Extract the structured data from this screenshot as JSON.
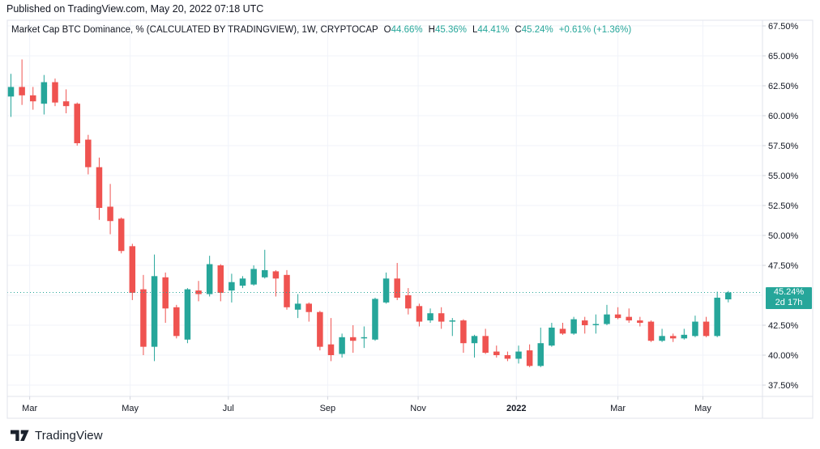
{
  "published_bar": {
    "text": "Published on TradingView.com, May 20, 2022 07:18 UTC"
  },
  "legend": {
    "title": "Market Cap BTC Dominance, % (CALCULATED BY TRADINGVIEW), 1W, CRYPTOCAP",
    "ohlc": [
      {
        "label": "O",
        "value": "44.66%"
      },
      {
        "label": "H",
        "value": "45.36%"
      },
      {
        "label": "L",
        "value": "44.41%"
      },
      {
        "label": "C",
        "value": "45.24%"
      }
    ],
    "change": "+0.61% (+1.36%)"
  },
  "footer": {
    "logo_text": "TradingView"
  },
  "colors": {
    "up": "#26a69a",
    "down": "#ef5350",
    "grid": "#f0f3fa",
    "border": "#e0e3eb",
    "axis_text": "#131722",
    "tick": "#d1d4dc",
    "price_line": "#26a69a",
    "badge_bg": "#26a69a",
    "badge_text": "#ffffff"
  },
  "chart_data": {
    "type": "candlestick",
    "title": "Market Cap BTC Dominance, %",
    "symbol": "CRYPTOCAP",
    "interval": "1W",
    "legend_position": "top-left",
    "grid": true,
    "ylim": [
      36.5,
      68.0
    ],
    "y_ticks": [
      {
        "label": "67.50%",
        "value": 67.5
      },
      {
        "label": "65.00%",
        "value": 65.0
      },
      {
        "label": "62.50%",
        "value": 62.5
      },
      {
        "label": "60.00%",
        "value": 60.0
      },
      {
        "label": "57.50%",
        "value": 57.5
      },
      {
        "label": "55.00%",
        "value": 55.0
      },
      {
        "label": "52.50%",
        "value": 52.5
      },
      {
        "label": "50.00%",
        "value": 50.0
      },
      {
        "label": "47.50%",
        "value": 47.5
      },
      {
        "label": "42.50%",
        "value": 42.5
      },
      {
        "label": "40.00%",
        "value": 40.0
      },
      {
        "label": "37.50%",
        "value": 37.5
      }
    ],
    "y_grid_values": [
      67.5,
      65.0,
      62.5,
      60.0,
      57.5,
      55.0,
      52.5,
      50.0,
      47.5,
      45.0,
      42.5,
      40.0,
      37.5
    ],
    "x_ticks": [
      {
        "label": "Mar",
        "week_index": 1.7,
        "bold": false
      },
      {
        "label": "May",
        "week_index": 10.8,
        "bold": false
      },
      {
        "label": "Jul",
        "week_index": 19.7,
        "bold": false
      },
      {
        "label": "Sep",
        "week_index": 28.7,
        "bold": false
      },
      {
        "label": "Nov",
        "week_index": 36.9,
        "bold": false
      },
      {
        "label": "2022",
        "week_index": 45.8,
        "bold": true
      },
      {
        "label": "Mar",
        "week_index": 55.0,
        "bold": false
      },
      {
        "label": "May",
        "week_index": 62.7,
        "bold": false
      }
    ],
    "candles": [
      [
        61.6,
        63.5,
        59.9,
        62.4
      ],
      [
        62.4,
        64.7,
        60.9,
        61.7
      ],
      [
        61.7,
        62.4,
        60.5,
        61.2
      ],
      [
        61.0,
        63.4,
        60.1,
        62.8
      ],
      [
        62.8,
        63.1,
        60.8,
        61.1
      ],
      [
        61.2,
        62.2,
        60.2,
        60.8
      ],
      [
        61.0,
        61.1,
        57.5,
        57.7
      ],
      [
        58.0,
        58.4,
        55.1,
        55.7
      ],
      [
        55.7,
        56.5,
        51.3,
        52.3
      ],
      [
        52.4,
        54.3,
        50.1,
        51.2
      ],
      [
        51.4,
        51.5,
        48.5,
        48.7
      ],
      [
        49.1,
        49.3,
        44.6,
        45.2
      ],
      [
        45.5,
        46.7,
        40.0,
        40.7
      ],
      [
        40.7,
        48.4,
        39.5,
        46.6
      ],
      [
        46.5,
        46.9,
        42.7,
        43.9
      ],
      [
        44.0,
        44.2,
        41.4,
        41.6
      ],
      [
        41.3,
        45.6,
        41.0,
        45.5
      ],
      [
        45.4,
        46.2,
        44.5,
        45.1
      ],
      [
        45.1,
        48.3,
        44.9,
        47.6
      ],
      [
        47.5,
        47.6,
        44.5,
        45.2
      ],
      [
        45.4,
        46.8,
        44.4,
        46.1
      ],
      [
        45.8,
        46.6,
        45.6,
        46.4
      ],
      [
        45.9,
        47.5,
        45.8,
        47.2
      ],
      [
        46.5,
        48.8,
        46.4,
        47.1
      ],
      [
        47.0,
        47.1,
        44.9,
        46.4
      ],
      [
        46.7,
        47.1,
        43.8,
        44.0
      ],
      [
        43.8,
        45.1,
        43.1,
        44.3
      ],
      [
        44.3,
        44.4,
        42.8,
        43.6
      ],
      [
        43.6,
        43.7,
        40.4,
        40.7
      ],
      [
        40.9,
        43.1,
        39.5,
        40.0
      ],
      [
        40.1,
        41.8,
        39.8,
        41.5
      ],
      [
        41.5,
        42.5,
        40.2,
        41.2
      ],
      [
        41.4,
        42.4,
        40.6,
        41.5
      ],
      [
        41.3,
        44.8,
        41.2,
        44.7
      ],
      [
        44.4,
        46.9,
        44.3,
        46.4
      ],
      [
        46.4,
        47.7,
        44.6,
        44.8
      ],
      [
        45.0,
        45.6,
        43.4,
        43.9
      ],
      [
        44.1,
        44.3,
        42.4,
        42.8
      ],
      [
        42.9,
        43.9,
        42.7,
        43.5
      ],
      [
        43.5,
        44.0,
        42.2,
        42.8
      ],
      [
        42.8,
        43.1,
        41.6,
        42.9
      ],
      [
        42.9,
        43.0,
        40.2,
        41.0
      ],
      [
        41.0,
        41.7,
        39.8,
        41.6
      ],
      [
        41.6,
        42.2,
        40.1,
        40.2
      ],
      [
        40.3,
        40.8,
        39.8,
        40.0
      ],
      [
        40.0,
        40.3,
        39.5,
        39.7
      ],
      [
        39.7,
        40.8,
        39.3,
        40.3
      ],
      [
        40.4,
        40.9,
        39.0,
        39.1
      ],
      [
        39.1,
        42.3,
        39.0,
        41.0
      ],
      [
        40.8,
        42.7,
        40.7,
        42.3
      ],
      [
        42.2,
        42.7,
        41.7,
        41.8
      ],
      [
        41.8,
        43.2,
        41.7,
        43.0
      ],
      [
        42.9,
        43.2,
        41.8,
        42.5
      ],
      [
        42.5,
        43.4,
        41.8,
        42.6
      ],
      [
        42.6,
        44.2,
        42.5,
        43.4
      ],
      [
        43.4,
        44.0,
        43.0,
        43.1
      ],
      [
        43.2,
        43.9,
        42.7,
        42.9
      ],
      [
        42.9,
        43.2,
        42.4,
        42.7
      ],
      [
        42.8,
        42.9,
        41.1,
        41.2
      ],
      [
        41.2,
        42.2,
        41.1,
        41.6
      ],
      [
        41.6,
        41.8,
        41.1,
        41.4
      ],
      [
        41.4,
        42.2,
        41.3,
        41.7
      ],
      [
        41.6,
        43.3,
        41.5,
        42.8
      ],
      [
        42.8,
        43.2,
        41.5,
        41.6
      ],
      [
        41.6,
        45.3,
        41.5,
        44.8
      ],
      [
        44.66,
        45.36,
        44.41,
        45.24
      ]
    ],
    "last": {
      "open": "44.66%",
      "high": "45.36%",
      "low": "44.41%",
      "close": "45.24%",
      "change": "+0.61% (+1.36%)"
    },
    "last_price_label": "45.24%",
    "last_price_value": 45.24,
    "countdown": "2d 17h"
  }
}
